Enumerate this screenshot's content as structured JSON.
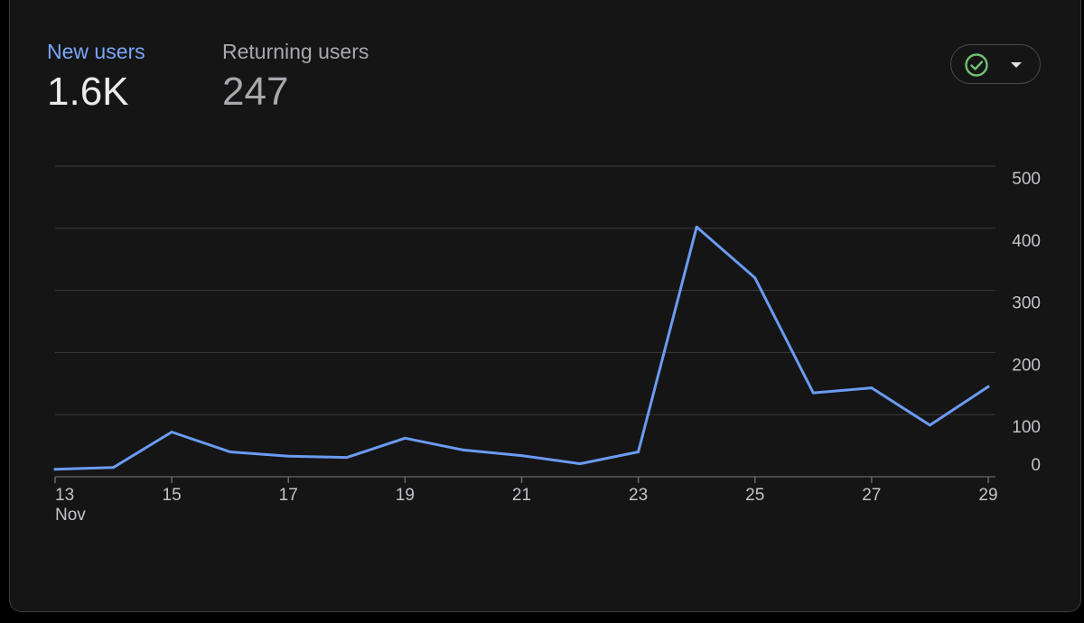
{
  "tabs": [
    {
      "label": "New users",
      "value": "1.6K",
      "active": true
    },
    {
      "label": "Returning users",
      "value": "247",
      "active": false
    }
  ],
  "status_button": {
    "icon": "check-circle-icon",
    "caret_icon": "caret-down-icon",
    "icon_color": "#6fbf73"
  },
  "colors": {
    "accent": "#6b9bf2",
    "background": "#151516",
    "gridline": "#3a3a3d",
    "text_muted": "#c4c4c8"
  },
  "chart_data": {
    "type": "line",
    "series": [
      {
        "values": [
          12,
          15,
          72,
          40,
          33,
          31,
          62,
          43,
          34,
          21,
          40,
          402,
          320,
          135,
          143,
          83,
          145
        ]
      }
    ],
    "x": [
      "13",
      "14",
      "15",
      "16",
      "17",
      "18",
      "19",
      "20",
      "21",
      "22",
      "23",
      "24",
      "25",
      "26",
      "27",
      "28",
      "29"
    ],
    "x_tick_labels": [
      "13",
      "15",
      "17",
      "19",
      "21",
      "23",
      "25",
      "27",
      "29"
    ],
    "x_month_label": "Nov",
    "y_ticks": [
      0,
      100,
      200,
      300,
      400,
      500
    ],
    "ylim": [
      0,
      500
    ],
    "xlabel": "",
    "ylabel": "",
    "title": "",
    "grid": true,
    "y_axis_position": "right"
  }
}
